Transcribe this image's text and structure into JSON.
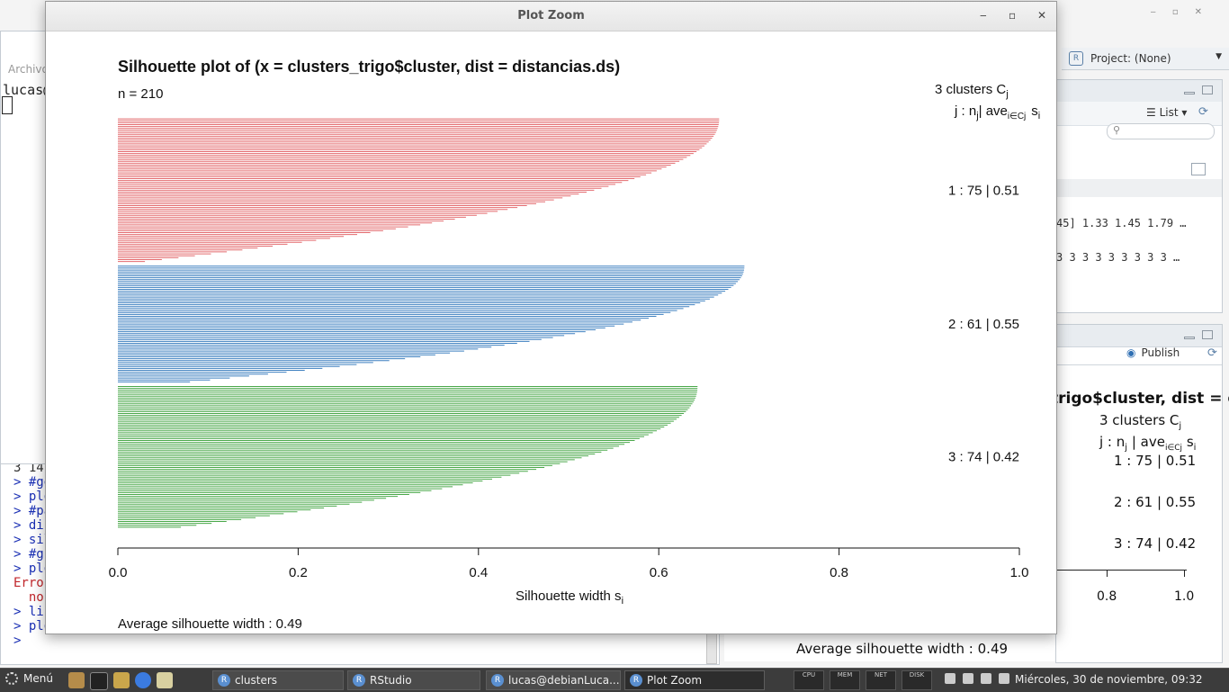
{
  "rstudio": {
    "project_label": "Project: (None)",
    "left_menu": "Archivo",
    "left_user": "lucas@",
    "env": {
      "view_mode": "List",
      "row1": "45] 1.33 1.45 1.79 …",
      "row2": "3 3 3 3 3 3 3 3 3 …"
    },
    "plots": {
      "publish_label": "Publish"
    },
    "console_lines": [
      {
        "text": "3 14",
        "kind": "dark"
      },
      {
        "text": "> #ge",
        "kind": "blue"
      },
      {
        "text": "> plo",
        "kind": "blue"
      },
      {
        "text": "> #pa",
        "kind": "blue"
      },
      {
        "text": "> dis",
        "kind": "blue"
      },
      {
        "text": "> sil",
        "kind": "blue"
      },
      {
        "text": "> #gr",
        "kind": "blue"
      },
      {
        "text": "> plo",
        "kind": "blue"
      },
      {
        "text": "Error",
        "kind": "red"
      },
      {
        "text": "  no",
        "kind": "red"
      },
      {
        "text": "> lib",
        "kind": "blue"
      },
      {
        "text": "> plo",
        "kind": "blue"
      },
      {
        "text": "> ",
        "kind": "blue"
      }
    ],
    "bg_plot": {
      "title_fragment": "trigo$cluster, dist = d",
      "clusters_header": "3  clusters  C",
      "clusters_header_sub": "j",
      "legend_header": "j :  n",
      "rows": [
        "1 :   75  |  0.51",
        "2 :   61  |  0.55",
        "3 :   74  |  0.42"
      ],
      "ticks": [
        "0.8",
        "1.0"
      ],
      "average": "Average silhouette width :  0.49"
    }
  },
  "zoom_window": {
    "title": "Plot Zoom",
    "buttons": {
      "minimize": "‒",
      "maximize": "▫",
      "close": "✕"
    }
  },
  "chart_data": {
    "type": "bar",
    "orientation": "horizontal",
    "title": "Silhouette plot of (x = clusters_trigo$cluster, dist = distancias.ds)",
    "n_label": "n = 210",
    "n": 210,
    "header_line1": "3  clusters  C",
    "header_line1_sub": "j",
    "header_line2": "j :  n",
    "header_line2_mid": "| ave",
    "header_line2_sub_i": "i∈Cj",
    "header_line2_end": "s",
    "header_line2_end_sub": "i",
    "xlabel": "Silhouette width s",
    "xlabel_sub": "i",
    "xlim": [
      0,
      1
    ],
    "xticks": [
      "0.0",
      "0.2",
      "0.4",
      "0.6",
      "0.8",
      "1.0"
    ],
    "average_label": "Average silhouette width :  0.49",
    "average_silhouette": 0.49,
    "clusters": [
      {
        "id": 1,
        "n": 75,
        "avg": 0.51,
        "label": "1 :   75  |  0.51",
        "color": "#e36a6e",
        "max": 0.667,
        "min": 0.03
      },
      {
        "id": 2,
        "n": 61,
        "avg": 0.55,
        "label": "2 :   61  |  0.55",
        "color": "#3c7fbf",
        "max": 0.695,
        "min": 0.08
      },
      {
        "id": 3,
        "n": 74,
        "avg": 0.42,
        "label": "3 :   74  |  0.42",
        "color": "#4aa84a",
        "max": 0.643,
        "min": 0.07
      }
    ]
  },
  "taskbar": {
    "menu_label": "Menú",
    "tasks": [
      {
        "label": "clusters",
        "active": false
      },
      {
        "label": "RStudio",
        "active": false
      },
      {
        "label": "lucas@debianLuca...",
        "active": false
      },
      {
        "label": "Plot Zoom",
        "active": true
      }
    ],
    "monitors": [
      "CPU",
      "MEM",
      "NET",
      "DISK"
    ],
    "clock": "Miércoles, 30 de noviembre, 09:32"
  }
}
